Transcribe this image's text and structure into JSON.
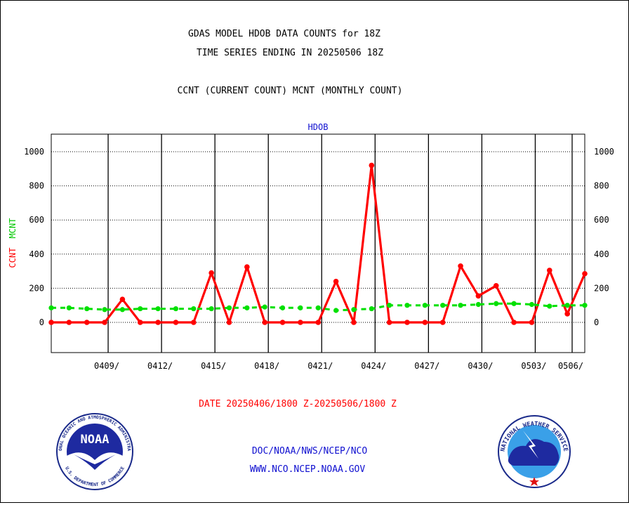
{
  "header": {
    "title_line1": "GDAS MODEL HDOB DATA COUNTS for 18Z",
    "title_line2": "TIME SERIES ENDING IN 20250506 18Z",
    "legend_line": "CCNT (CURRENT COUNT) MCNT (MONTHLY COUNT)"
  },
  "chart_data": {
    "type": "line",
    "title": "HDOB",
    "ylabel_ccnt": "CCNT",
    "ylabel_mcnt": "MCNT",
    "xlabel": "DATE 20250406/1800 Z-20250506/1800 Z",
    "ylim": [
      -180,
      1100
    ],
    "yticks": [
      0,
      200,
      400,
      600,
      800,
      1000
    ],
    "x_tick_labels": [
      "0409/",
      "0412/",
      "0415/",
      "0418/",
      "0421/",
      "0424/",
      "0427/",
      "0430/",
      "0503/",
      "0506/"
    ],
    "x": [
      "0406",
      "0407",
      "0408",
      "0409",
      "0410",
      "0411",
      "0412",
      "0413",
      "0414",
      "0415",
      "0416",
      "0417",
      "0418",
      "0419",
      "0420",
      "0421",
      "0422",
      "0423",
      "0424",
      "0425",
      "0426",
      "0427",
      "0428",
      "0429",
      "0430",
      "0501",
      "0502",
      "0503",
      "0504",
      "0505",
      "0506"
    ],
    "series": [
      {
        "name": "CCNT",
        "color": "#ff0000",
        "style": "solid",
        "values": [
          0,
          0,
          0,
          0,
          135,
          0,
          0,
          0,
          0,
          290,
          0,
          325,
          0,
          0,
          0,
          0,
          240,
          0,
          920,
          0,
          0,
          0,
          0,
          330,
          155,
          215,
          0,
          0,
          305,
          50,
          285
        ]
      },
      {
        "name": "MCNT",
        "color": "#00e000",
        "style": "dashed",
        "values": [
          85,
          85,
          80,
          75,
          75,
          80,
          80,
          80,
          80,
          80,
          85,
          85,
          90,
          85,
          85,
          85,
          70,
          75,
          80,
          100,
          100,
          100,
          100,
          100,
          105,
          110,
          110,
          105,
          95,
          100,
          100
        ]
      }
    ],
    "grid": true
  },
  "footer": {
    "line1": "DOC/NOAA/NWS/NCEP/NCO",
    "line2": "WWW.NCO.NCEP.NOAA.GOV",
    "noaa_logo_text": "NOAA",
    "noaa_seal_ring_top": "NATIONAL OCEANIC AND ATMOSPHERIC ADMINISTRATION",
    "noaa_seal_ring_bottom": "U.S. DEPARTMENT OF COMMERCE",
    "nws_seal_ring": "NATIONAL WEATHER SERVICE"
  }
}
